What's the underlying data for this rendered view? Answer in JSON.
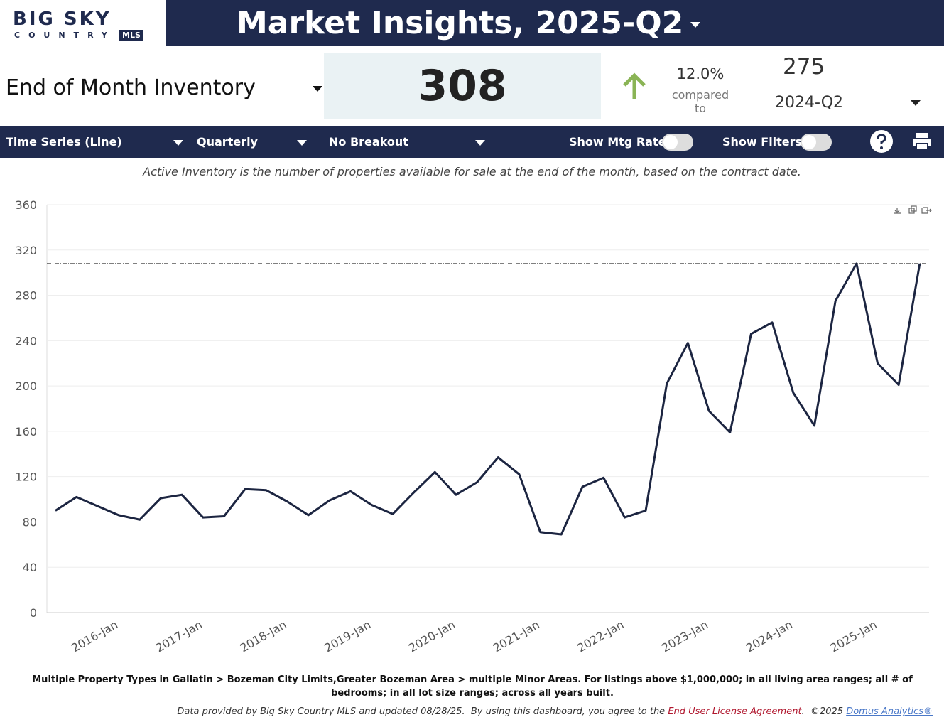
{
  "logo": {
    "top": "BIG SKY",
    "bottom": "COUNTRY",
    "badge": "MLS"
  },
  "header": {
    "title": "Market Insights, 2025-Q2"
  },
  "metric": {
    "name": "End of Month Inventory",
    "value": 308,
    "change": "12.0%",
    "compared_to": "compared to",
    "compare_value": 275,
    "compare_period": "2024-Q2"
  },
  "toolbar": {
    "chart_type": "Time Series (Line)",
    "interval": "Quarterly",
    "breakout": "No Breakout",
    "mtg_rate": "Show Mtg Rate:",
    "filters": "Show Filters:"
  },
  "description": "Active Inventory is the number of properties available for sale at the end of the month, based on the contract date.",
  "chart_data": {
    "type": "line",
    "categories": [
      null,
      null,
      null,
      "2016-Jan",
      null,
      null,
      null,
      "2017-Jan",
      null,
      null,
      null,
      "2018-Jan",
      null,
      null,
      null,
      "2019-Jan",
      null,
      null,
      null,
      "2020-Jan",
      null,
      null,
      null,
      "2021-Jan",
      null,
      null,
      null,
      "2022-Jan",
      null,
      null,
      null,
      "2023-Jan",
      null,
      null,
      null,
      "2024-Jan",
      null,
      null,
      null,
      "2025-Jan",
      null,
      null
    ],
    "series": [
      {
        "name": "End of Month Inventory",
        "color": "#1c2541",
        "values": [
          90,
          102,
          94,
          86,
          82,
          101,
          104,
          84,
          85,
          109,
          108,
          98,
          86,
          99,
          107,
          95,
          87,
          106,
          124,
          104,
          115,
          137,
          122,
          71,
          69,
          111,
          119,
          84,
          90,
          202,
          238,
          178,
          159,
          246,
          256,
          194,
          165,
          275,
          308,
          220,
          201,
          308
        ]
      }
    ],
    "reference_value": 308,
    "ylim": [
      0,
      360
    ],
    "yticks": [
      0,
      40,
      80,
      120,
      160,
      200,
      240,
      280,
      320,
      360
    ],
    "grid": true
  },
  "footer": {
    "filters": "Multiple Property Types in Gallatin > Bozeman City Limits,Greater Bozeman Area > multiple Minor Areas. For listings above $1,000,000; in all living area ranges; all # of bedrooms; in all lot size ranges; across all years built.",
    "credit": "Data provided by Big Sky Country MLS and updated 08/28/25.  By using this dashboard, you agree to the ",
    "eula": "End User License Agreement",
    "copyright": ".  ©2025 ",
    "vendor": "Domus Analytics®"
  }
}
